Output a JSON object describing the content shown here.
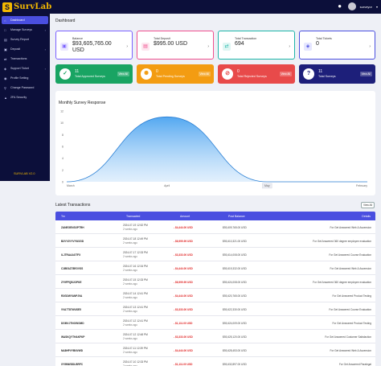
{
  "app": {
    "logo_mark": "S",
    "logo_text": "SurvLab",
    "username": "surveyor",
    "version": "SURVLAB V2.0"
  },
  "sidebar": {
    "items": [
      {
        "label": "Dashboard",
        "icon": "home-icon",
        "active": true
      },
      {
        "label": "Manage Surveys",
        "icon": "clipboard-icon",
        "caret": true
      },
      {
        "label": "Survey Report",
        "icon": "report-icon"
      },
      {
        "label": "Deposit",
        "icon": "wallet-icon",
        "caret": true
      },
      {
        "label": "Transactions",
        "icon": "exchange-icon"
      },
      {
        "label": "Support Ticket",
        "icon": "ticket-icon",
        "caret": true
      },
      {
        "label": "Profile Setting",
        "icon": "user-icon"
      },
      {
        "label": "Change Password",
        "icon": "key-icon"
      },
      {
        "label": "2FA Security",
        "icon": "shield-icon"
      }
    ]
  },
  "dashboard": {
    "title": "Dashboard",
    "cards": [
      {
        "label": "Balance",
        "value": "$93,605,765.00 USD",
        "icon": "wallet-icon",
        "color": "#7b61ff"
      },
      {
        "label": "Total Deposit",
        "value": "$995.00 USD",
        "icon": "credit-card-icon",
        "color": "#f0508e"
      },
      {
        "label": "Total Transaction",
        "value": "694",
        "icon": "exchange-icon",
        "color": "#1cb5a8"
      },
      {
        "label": "Total Tickets",
        "value": "0",
        "icon": "ticket-icon",
        "color": "#4a4fe0"
      }
    ],
    "tiles": [
      {
        "count": "11",
        "label": "Total Approved Surveys",
        "view": "View All",
        "icon": "check-icon",
        "color": "#19a463"
      },
      {
        "count": "0",
        "label": "Total Pending Surveys",
        "view": "View All",
        "icon": "spinner-icon",
        "color": "#f39c12"
      },
      {
        "count": "0",
        "label": "Total Rejected Surveys",
        "view": "View All",
        "icon": "ban-icon",
        "color": "#e84a4a"
      },
      {
        "count": "11",
        "label": "Total Surveys",
        "view": "View All",
        "icon": "question-icon",
        "color": "#1d1f7a"
      }
    ]
  },
  "chart_data": {
    "type": "area",
    "title": "Monthly Survey Response",
    "x": [
      "March",
      "April",
      "May",
      "February"
    ],
    "series": [
      {
        "values": [
          0,
          11,
          0,
          0
        ]
      }
    ],
    "yticks": [
      "0",
      "2",
      "4",
      "6",
      "8",
      "10",
      "12"
    ],
    "ylim": [
      0,
      12
    ],
    "grid": false,
    "colors": {
      "fill": "#4aa3f0",
      "line": "#2a7fd4"
    }
  },
  "transactions": {
    "title": "Latest Transactions",
    "view_all": "View All",
    "columns": [
      "Trx",
      "Transacted",
      "Amount",
      "Post Balance",
      "Details"
    ],
    "rows": [
      {
        "trx": "ZANEGENSXPTRH",
        "date": "2024-07-19 12:52 PM",
        "ago": "2 weeks ago",
        "amount": "- $4,444.00 USD",
        "balance": "$93,609,765.00 USD",
        "details": "For Get Answered Web & Ascension"
      },
      {
        "trx": "B2VY2VYVYWJGD",
        "date": "2024-07-18 12:49 PM",
        "ago": "2 weeks ago",
        "amount": "- $6,999.99 USD",
        "balance": "$93,610,321.00 USD",
        "details": "For Get Answered 360 degree employee evaluation"
      },
      {
        "trx": "ILJTRAAAOTFX",
        "date": "2024-07-17 12:33 PM",
        "ago": "2 weeks ago",
        "amount": "- $3,333.00 USD",
        "balance": "$93,614,008.00 USD",
        "details": "For Get Answered Course Evaluation"
      },
      {
        "trx": "C1BEAZ78EGVSS",
        "date": "2024-07-16 12:34 PM",
        "ago": "2 weeks ago",
        "amount": "- $4,444.00 USD",
        "balance": "$93,619,332.00 USD",
        "details": "For Get Answered Web & Ascension"
      },
      {
        "trx": "ZY9FPQBJOPKE",
        "date": "2024-07-15 12:33 PM",
        "ago": "2 weeks ago",
        "amount": "- $6,999.99 USD",
        "balance": "$93,624,008.00 USD",
        "details": "For Get Answered 360 degree employee evaluation"
      },
      {
        "trx": "R3GDWYANPJ9A",
        "date": "2024-07-14 12:41 PM",
        "ago": "2 weeks ago",
        "amount": "- $4,444.00 USD",
        "balance": "$93,620,765.00 USD",
        "details": "For Get Answered Product Testing"
      },
      {
        "trx": "VVA7T87WUSE5",
        "date": "2024-07-13 12:41 PM",
        "ago": "2 weeks ago",
        "amount": "- $3,333.00 USD",
        "balance": "$93,622,330.00 USD",
        "details": "For Get Answered Course Evaluation"
      },
      {
        "trx": "DGMVJTNOWOMD",
        "date": "2024-07-12 12:41 PM",
        "ago": "2 weeks ago",
        "amount": "- $1,111.00 USD",
        "balance": "$93,624,009.00 USD",
        "details": "For Get Answered Product Testing"
      },
      {
        "trx": "WASKQYTHAKFKP",
        "date": "2024-07-12 12:48 PM",
        "ago": "2 weeks ago",
        "amount": "- $3,333.00 USD",
        "balance": "$93,625,120.00 USD",
        "details": "For Get Answered Customer Satisfaction"
      },
      {
        "trx": "NA8HPVYBNVWD",
        "date": "2024-07-11 12:39 PM",
        "ago": "2 weeks ago",
        "amount": "- $4,444.00 USD",
        "balance": "$93,628,453.00 USD",
        "details": "For Get Answered Web & Ascension"
      },
      {
        "trx": "XY5MWDDLBRFC",
        "date": "2024-07-10 12:33 PM",
        "ago": "2 weeks ago",
        "amount": "- $1,111.00 USD",
        "balance": "$93,632,897.00 USD",
        "details": "For Get Answered Paralegal"
      }
    ]
  }
}
